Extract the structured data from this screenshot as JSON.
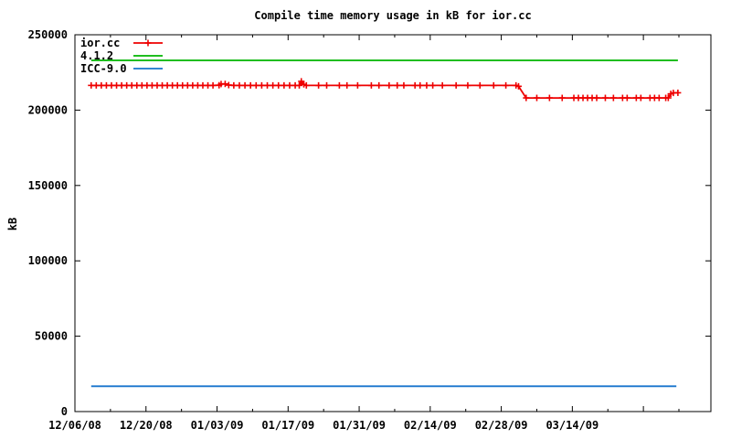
{
  "page": {
    "background": "#ffffff",
    "text_color": "#000000"
  },
  "chart_data": {
    "type": "line",
    "title": "Compile time memory usage in kB for ior.cc",
    "xlabel": "",
    "ylabel": "kB",
    "grid": false,
    "legend_position": "top-left",
    "x_axis": {
      "unit": "date (days since 12/06/08)",
      "start_date": "12/06/08",
      "domain_days": [
        0,
        125.3
      ],
      "tick_label_days": [
        0,
        14,
        28,
        42,
        56,
        70,
        84,
        98
      ],
      "tick_labels": [
        "12/06/08",
        "12/20/08",
        "01/03/09",
        "01/17/09",
        "01/31/09",
        "02/14/09",
        "02/28/09",
        "03/14/09"
      ],
      "extra_major_tick_days": [
        112
      ],
      "minor_tick_days": [
        7,
        21,
        35,
        49,
        63,
        77,
        91,
        105,
        119
      ]
    },
    "y_axis": {
      "range": [
        0,
        250000
      ],
      "ticks": [
        0,
        50000,
        100000,
        150000,
        200000,
        250000
      ]
    },
    "series": [
      {
        "name": "ior.cc",
        "color": "#ee0000",
        "marker": "plus",
        "points": [
          [
            3.2,
            216400
          ],
          [
            4.2,
            216400
          ],
          [
            5.2,
            216400
          ],
          [
            6.2,
            216400
          ],
          [
            7.2,
            216400
          ],
          [
            8.2,
            216400
          ],
          [
            9.2,
            216400
          ],
          [
            10.2,
            216400
          ],
          [
            11.2,
            216400
          ],
          [
            12.2,
            216400
          ],
          [
            13.2,
            216400
          ],
          [
            14.2,
            216400
          ],
          [
            15.2,
            216400
          ],
          [
            16.2,
            216400
          ],
          [
            17.2,
            216400
          ],
          [
            18.2,
            216400
          ],
          [
            19.2,
            216400
          ],
          [
            20.2,
            216400
          ],
          [
            21.2,
            216400
          ],
          [
            22.2,
            216400
          ],
          [
            23.2,
            216400
          ],
          [
            24.2,
            216400
          ],
          [
            25.2,
            216400
          ],
          [
            26.2,
            216400
          ],
          [
            27.2,
            216400
          ],
          [
            28.4,
            216500
          ],
          [
            28.8,
            217300
          ],
          [
            29.6,
            217400
          ],
          [
            30.3,
            216600
          ],
          [
            31.3,
            216400
          ],
          [
            32.4,
            216400
          ],
          [
            33.5,
            216400
          ],
          [
            34.6,
            216400
          ],
          [
            35.7,
            216400
          ],
          [
            36.8,
            216400
          ],
          [
            37.9,
            216400
          ],
          [
            39.0,
            216400
          ],
          [
            40.1,
            216400
          ],
          [
            41.2,
            216400
          ],
          [
            42.3,
            216400
          ],
          [
            43.4,
            216400
          ],
          [
            44.2,
            216400
          ],
          [
            44.6,
            219100
          ],
          [
            45.1,
            217100
          ],
          [
            45.6,
            216400
          ],
          [
            48.0,
            216400
          ],
          [
            49.6,
            216400
          ],
          [
            52.1,
            216400
          ],
          [
            53.6,
            216400
          ],
          [
            55.7,
            216400
          ],
          [
            58.4,
            216400
          ],
          [
            59.9,
            216400
          ],
          [
            61.9,
            216400
          ],
          [
            63.5,
            216400
          ],
          [
            64.8,
            216400
          ],
          [
            67.0,
            216400
          ],
          [
            68.0,
            216400
          ],
          [
            69.3,
            216400
          ],
          [
            70.5,
            216400
          ],
          [
            72.4,
            216400
          ],
          [
            75.1,
            216400
          ],
          [
            77.4,
            216400
          ],
          [
            79.8,
            216400
          ],
          [
            82.5,
            216400
          ],
          [
            84.9,
            216400
          ],
          [
            86.9,
            216400
          ],
          [
            87.4,
            215800
          ],
          [
            88.9,
            208100
          ],
          [
            91.0,
            208100
          ],
          [
            93.5,
            208100
          ],
          [
            96.0,
            208100
          ],
          [
            98.3,
            208100
          ],
          [
            99.2,
            208100
          ],
          [
            100.1,
            208100
          ],
          [
            101.0,
            208100
          ],
          [
            101.9,
            208100
          ],
          [
            102.8,
            208100
          ],
          [
            104.5,
            208100
          ],
          [
            106.1,
            208100
          ],
          [
            107.9,
            208100
          ],
          [
            108.8,
            208100
          ],
          [
            110.6,
            208100
          ],
          [
            111.5,
            208100
          ],
          [
            113.3,
            208100
          ],
          [
            114.2,
            208100
          ],
          [
            115.1,
            208100
          ],
          [
            116.4,
            208100
          ],
          [
            116.9,
            208100
          ],
          [
            117.4,
            210800
          ],
          [
            117.9,
            211400
          ],
          [
            118.8,
            211500
          ]
        ]
      },
      {
        "name": "4.1.2",
        "color": "#00b400",
        "marker": "none",
        "points": [
          [
            3.2,
            233000
          ],
          [
            118.8,
            233000
          ]
        ]
      },
      {
        "name": "ICC-9.0",
        "color": "#1874cd",
        "marker": "none",
        "points": [
          [
            3.2,
            16800
          ],
          [
            118.5,
            16800
          ]
        ]
      }
    ]
  }
}
